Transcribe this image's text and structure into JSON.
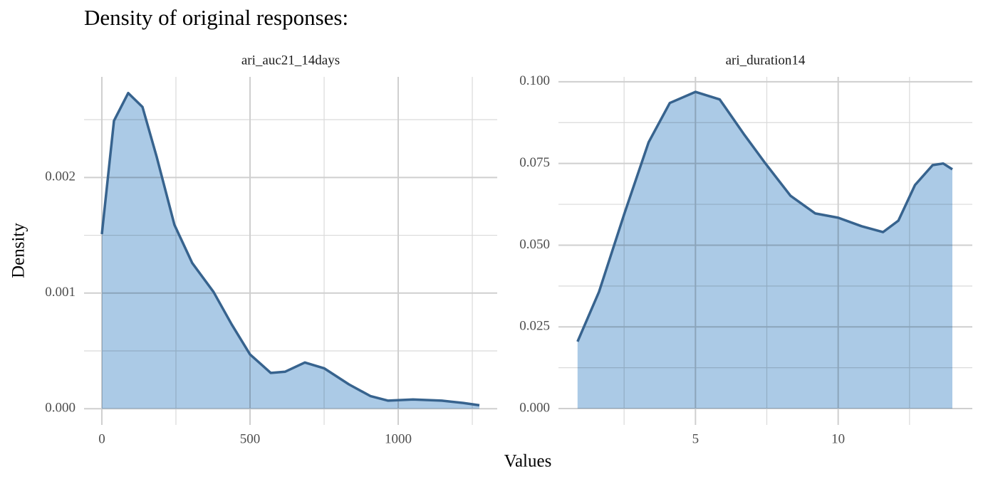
{
  "title": "Density of original responses:",
  "x_label": "Values",
  "y_label": "Density",
  "chart_data": [
    {
      "type": "area",
      "title": "ari_auc21_14days",
      "x": [
        0,
        41,
        89,
        137,
        185,
        245,
        305,
        377,
        438,
        500,
        570,
        618,
        685,
        750,
        834,
        906,
        966,
        1050,
        1147,
        1219,
        1274
      ],
      "series": [
        {
          "color": "#37638e",
          "fill": "#a7c7e5",
          "values": [
            0.00151,
            0.00249,
            0.00273,
            0.00261,
            0.00218,
            0.00159,
            0.00126,
            0.00101,
            0.00073,
            0.00047,
            0.00031,
            0.00032,
            0.0004,
            0.00035,
            0.00021,
            0.00011,
            7e-05,
            8e-05,
            7e-05,
            5e-05,
            3e-05
          ]
        }
      ],
      "xlim": [
        -60,
        1334
      ],
      "ylim": [
        -0.00014,
        0.00287
      ],
      "xticks": [
        0,
        500,
        1000
      ],
      "yticks": [
        {
          "value": 0,
          "label": "0.000"
        },
        {
          "value": 0.001,
          "label": "0.001"
        },
        {
          "value": 0.002,
          "label": "0.002"
        }
      ],
      "minor_xticks": [
        250,
        750,
        1250
      ],
      "minor_yticks": [
        0.0005,
        0.0015,
        0.0025
      ],
      "grid": true
    },
    {
      "type": "area",
      "title": "ari_duration14",
      "x": [
        0.87,
        1.62,
        2.51,
        3.36,
        4.1,
        5,
        5.85,
        6.72,
        7.46,
        8.33,
        9.2,
        10,
        10.82,
        11.57,
        12.11,
        12.69,
        13.31,
        13.68,
        14.0
      ],
      "series": [
        {
          "color": "#37638e",
          "fill": "#a7c7e5",
          "values": [
            0.0205,
            0.0357,
            0.0597,
            0.0815,
            0.0935,
            0.0969,
            0.0946,
            0.0837,
            0.0749,
            0.0651,
            0.0597,
            0.0584,
            0.0558,
            0.054,
            0.0575,
            0.0684,
            0.0745,
            0.075,
            0.0732
          ]
        }
      ],
      "xlim": [
        0.2,
        14.7
      ],
      "ylim": [
        -0.005,
        0.1015
      ],
      "xticks": [
        5,
        10
      ],
      "yticks": [
        {
          "value": 0,
          "label": "0.000"
        },
        {
          "value": 0.025,
          "label": "0.025"
        },
        {
          "value": 0.05,
          "label": "0.050"
        },
        {
          "value": 0.075,
          "label": "0.075"
        },
        {
          "value": 0.1,
          "label": "0.100"
        }
      ],
      "minor_xticks": [
        2.5,
        7.5,
        12.5
      ],
      "minor_yticks": [
        0.0125,
        0.0375,
        0.0625,
        0.0875
      ],
      "grid": true
    }
  ]
}
